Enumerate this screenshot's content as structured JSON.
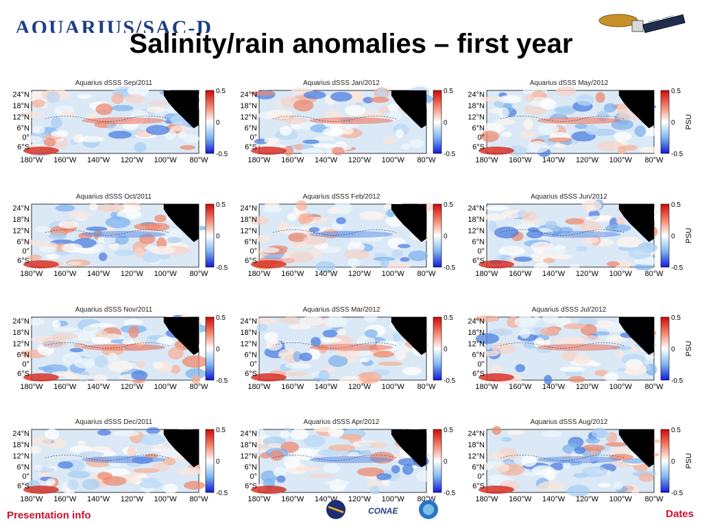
{
  "header": {
    "logo_text": "AQUARIUS/SAC-D",
    "title": "Salinity/rain anomalies – first year"
  },
  "footer": {
    "left": "Presentation info",
    "right": "Dates",
    "partner_mark": "CONAE"
  },
  "panel_label": "Aquarius dSSS",
  "months": [
    "Sep/2011",
    "Oct/2011",
    "Nov/2011",
    "Dec/2011",
    "Jan/2012",
    "Feb/2012",
    "Mar/2012",
    "Apr/2012",
    "May/2012",
    "Jun/2012",
    "Jul/2012",
    "Aug/2012"
  ],
  "lat_ticks": [
    "24",
    "18",
    "12",
    "6",
    "0",
    "6"
  ],
  "lat_hemi": [
    "N",
    "N",
    "N",
    "N",
    "",
    "S"
  ],
  "lon_ticks": [
    "180",
    "160",
    "140",
    "120",
    "100",
    "80"
  ],
  "lon_hemi": "W",
  "colorbar_ticks": [
    "0.5",
    "0",
    "-0.5"
  ],
  "colorbar_unit": "PSU",
  "colors": {
    "title_color": "#000000",
    "footer_color": "#d0102a",
    "positive": "#e8261c",
    "neutral": "#ffffff",
    "negative": "#1c2ee8",
    "land": "#000000"
  }
}
